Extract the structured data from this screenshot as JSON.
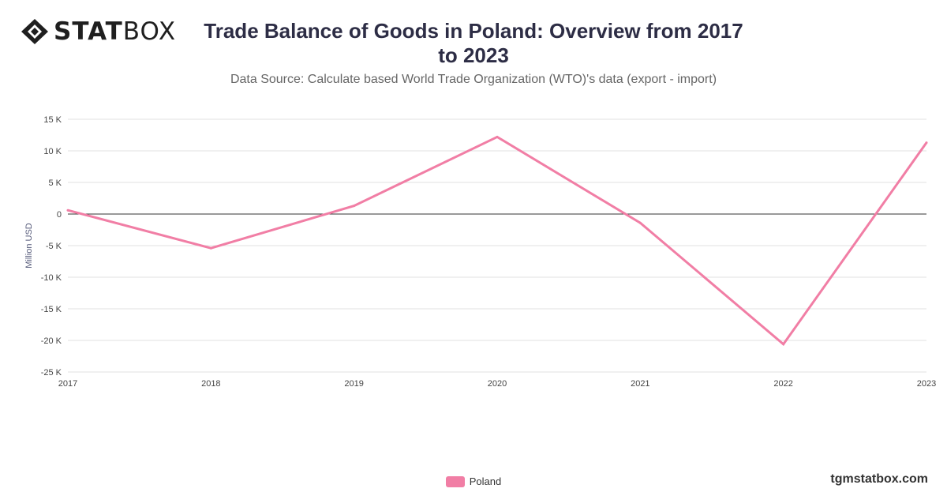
{
  "brand": {
    "name_bold": "STAT",
    "name_light": "BOX",
    "website": "tgmstatbox.com"
  },
  "header": {
    "title": "Trade Balance of Goods in Poland: Overview from 2017 to 2023",
    "subtitle": "Data Source: Calculate based World Trade Organization (WTO)'s data (export - import)"
  },
  "colors": {
    "series": "#f17ea5",
    "grid": "#e0e0e0",
    "zero_line": "#333333",
    "axis_text": "#444444"
  },
  "chart_data": {
    "type": "line",
    "title": "Trade Balance of Goods in Poland: Overview from 2017 to 2023",
    "subtitle": "Data Source: Calculate based World Trade Organization (WTO)'s data (export - import)",
    "x": [
      "2017",
      "2018",
      "2019",
      "2020",
      "2021",
      "2022",
      "2023"
    ],
    "series": [
      {
        "name": "Poland",
        "values": [
          600,
          -5400,
          1300,
          12200,
          -1400,
          -20600,
          11300
        ]
      }
    ],
    "xlabel": "",
    "ylabel": "Million USD",
    "ylim": [
      -25000,
      15000
    ],
    "yticks": [
      15000,
      10000,
      5000,
      0,
      -5000,
      -10000,
      -15000,
      -20000,
      -25000
    ],
    "ytick_labels": [
      "15 K",
      "10 K",
      "5 K",
      "0",
      "-5 K",
      "-10 K",
      "-15 K",
      "-20 K",
      "-25 K"
    ],
    "grid": true,
    "legend": "bottom-center"
  }
}
